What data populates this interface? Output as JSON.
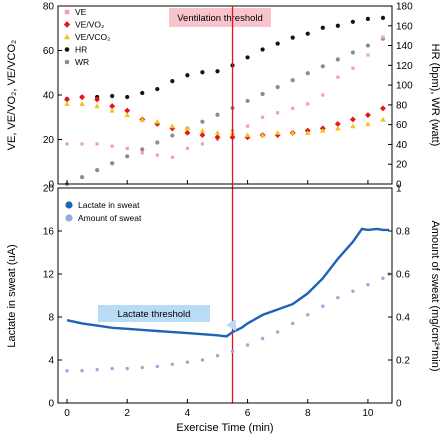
{
  "colors": {
    "ve": "#f4a0a8",
    "ve_vo2": "#e8141c",
    "ve_vco2": "#f0c419",
    "hr": "#111111",
    "wr": "#8c8c8c",
    "lactate": "#1f63b4",
    "sweat": "#8eaedb",
    "threshold_line": "#e0141c",
    "vt_box": "#f9c5cc",
    "lt_box": "#b9dcf5"
  },
  "chart_data": [
    {
      "type": "scatter",
      "panel": "top",
      "annotation": "Ventilation threshold",
      "x_range": [
        -0.3,
        10.8
      ],
      "threshold_x": 5.5,
      "left_axis": {
        "label": "VE, VE/VO₂, VE/VCO₂",
        "ylim": [
          0,
          80
        ],
        "ticks": [
          "0",
          "20",
          "40",
          "60",
          "80"
        ]
      },
      "right_axis": {
        "label": "HR (bpm), WR (watt)",
        "ylim": [
          0,
          180
        ],
        "ticks": [
          "0",
          "20",
          "40",
          "60",
          "80",
          "100",
          "120",
          "140",
          "160",
          "180"
        ]
      },
      "legend": [
        {
          "key": "ve",
          "label": "VE",
          "marker": "square"
        },
        {
          "key": "ve_vo2",
          "label": "VE/VO₂",
          "marker": "diamond"
        },
        {
          "key": "ve_vco2",
          "label": "VE/VCO₂",
          "marker": "triangle"
        },
        {
          "key": "hr",
          "label": "HR",
          "marker": "circle"
        },
        {
          "key": "wr",
          "label": "WR",
          "marker": "circle"
        }
      ],
      "series": [
        {
          "key": "hr",
          "name": "HR",
          "axis": "right",
          "points": [
            [
              0,
              86
            ],
            [
              0.5,
              88
            ],
            [
              1,
              88
            ],
            [
              1.5,
              89
            ],
            [
              2,
              88
            ],
            [
              2.5,
              92
            ],
            [
              3,
              96
            ],
            [
              3.5,
              104
            ],
            [
              4,
              110
            ],
            [
              4.5,
              113
            ],
            [
              5,
              114
            ],
            [
              5.5,
              120
            ],
            [
              6,
              128
            ],
            [
              6.5,
              136
            ],
            [
              7,
              142
            ],
            [
              7.5,
              148
            ],
            [
              8,
              152
            ],
            [
              8.5,
              158
            ],
            [
              9,
              160
            ],
            [
              9.5,
              164
            ],
            [
              10,
              167
            ],
            [
              10.5,
              168
            ]
          ]
        },
        {
          "key": "wr",
          "name": "WR",
          "axis": "right",
          "points": [
            [
              0,
              0
            ],
            [
              0.5,
              7
            ],
            [
              1,
              14
            ],
            [
              1.5,
              21
            ],
            [
              2,
              28
            ],
            [
              2.5,
              35
            ],
            [
              3,
              42
            ],
            [
              3.5,
              49
            ],
            [
              4,
              56
            ],
            [
              4.5,
              63
            ],
            [
              5,
              70
            ],
            [
              5.5,
              77
            ],
            [
              6,
              84
            ],
            [
              6.5,
              91
            ],
            [
              7,
              98
            ],
            [
              7.5,
              105
            ],
            [
              8,
              112
            ],
            [
              8.5,
              119
            ],
            [
              9,
              126
            ],
            [
              9.5,
              133
            ],
            [
              10,
              140
            ],
            [
              10.5,
              147
            ]
          ]
        },
        {
          "key": "ve",
          "name": "VE",
          "axis": "left",
          "points": [
            [
              0,
              18
            ],
            [
              0.5,
              18
            ],
            [
              1,
              18
            ],
            [
              1.5,
              17
            ],
            [
              2,
              16
            ],
            [
              2.5,
              14
            ],
            [
              3,
              13
            ],
            [
              3.5,
              12
            ],
            [
              4,
              16
            ],
            [
              4.5,
              18
            ],
            [
              5,
              20
            ],
            [
              5.5,
              24
            ],
            [
              6,
              26
            ],
            [
              6.5,
              30
            ],
            [
              7,
              32
            ],
            [
              7.5,
              34
            ],
            [
              8,
              36
            ],
            [
              8.5,
              40
            ],
            [
              9,
              48
            ],
            [
              9.5,
              52
            ],
            [
              10,
              58
            ],
            [
              10.5,
              66
            ]
          ]
        },
        {
          "key": "ve_vo2",
          "name": "VE/VO₂",
          "axis": "left",
          "points": [
            [
              0,
              38
            ],
            [
              0.5,
              39
            ],
            [
              1,
              38
            ],
            [
              1.5,
              35
            ],
            [
              2,
              33
            ],
            [
              2.5,
              29
            ],
            [
              3,
              27
            ],
            [
              3.5,
              25
            ],
            [
              4,
              23
            ],
            [
              4.5,
              22
            ],
            [
              5,
              21
            ],
            [
              5.5,
              21
            ],
            [
              6,
              21
            ],
            [
              6.5,
              22
            ],
            [
              7,
              22
            ],
            [
              7.5,
              23
            ],
            [
              8,
              24
            ],
            [
              8.5,
              25
            ],
            [
              9,
              27
            ],
            [
              9.5,
              29
            ],
            [
              10,
              31
            ],
            [
              10.5,
              34
            ]
          ]
        },
        {
          "key": "ve_vco2",
          "name": "VE/VCO₂",
          "axis": "left",
          "points": [
            [
              0,
              36
            ],
            [
              0.5,
              36
            ],
            [
              1,
              35
            ],
            [
              1.5,
              33
            ],
            [
              2,
              31
            ],
            [
              2.5,
              29
            ],
            [
              3,
              28
            ],
            [
              3.5,
              26
            ],
            [
              4,
              25
            ],
            [
              4.5,
              24
            ],
            [
              5,
              23
            ],
            [
              5.5,
              23
            ],
            [
              6,
              22
            ],
            [
              6.5,
              22
            ],
            [
              7,
              23
            ],
            [
              7.5,
              23
            ],
            [
              8,
              23
            ],
            [
              8.5,
              24
            ],
            [
              9,
              25
            ],
            [
              9.5,
              26
            ],
            [
              10,
              27
            ],
            [
              10.5,
              29
            ]
          ]
        }
      ]
    },
    {
      "type": "line",
      "panel": "bottom",
      "annotation": "Lactate threshold",
      "x_range": [
        -0.3,
        10.8
      ],
      "threshold_x": 5.5,
      "xlabel": "Exercise Time (min)",
      "x_ticks": [
        "0",
        "2",
        "4",
        "6",
        "8",
        "10"
      ],
      "left_axis": {
        "label": "Lactate in sweat  (uA)",
        "ylim": [
          0,
          20
        ],
        "ticks": [
          "0",
          "4",
          "8",
          "12",
          "16",
          "20"
        ]
      },
      "right_axis": {
        "label": "Amount of sweat  (mg/cm²*min)",
        "ylim": [
          0,
          1.0
        ],
        "ticks": [
          "0",
          "0.2",
          "0.4",
          "0.6",
          "0.8",
          "1"
        ]
      },
      "legend": [
        {
          "key": "lactate",
          "label": "Lactate in sweat"
        },
        {
          "key": "sweat",
          "label": "Amount of sweat"
        }
      ],
      "series": [
        {
          "key": "lactate",
          "name": "Lactate in sweat",
          "axis": "left",
          "x": [
            0,
            0.5,
            1,
            1.5,
            2,
            2.5,
            3,
            3.5,
            4,
            4.5,
            5,
            5.3,
            5.5,
            5.8,
            6,
            6.5,
            7,
            7.5,
            8,
            8.5,
            9,
            9.5,
            9.8,
            10,
            10.3,
            10.5,
            10.7
          ],
          "values": [
            7.7,
            7.4,
            7.2,
            7.0,
            6.9,
            6.8,
            6.7,
            6.6,
            6.5,
            6.4,
            6.3,
            6.2,
            6.6,
            7.0,
            7.4,
            8.2,
            8.7,
            9.2,
            10.2,
            11.6,
            13.4,
            15.0,
            16.2,
            16.1,
            16.2,
            16.1,
            16.1
          ]
        },
        {
          "key": "sweat",
          "name": "Amount of sweat",
          "axis": "right",
          "x": [
            0,
            0.5,
            1,
            1.5,
            2,
            2.5,
            3,
            3.5,
            4,
            4.5,
            5,
            5.5,
            6,
            6.5,
            7,
            7.5,
            8,
            8.5,
            9,
            9.5,
            10,
            10.5,
            10.7
          ],
          "values": [
            0.15,
            0.15,
            0.155,
            0.16,
            0.16,
            0.165,
            0.17,
            0.18,
            0.19,
            0.2,
            0.22,
            0.24,
            0.27,
            0.3,
            0.33,
            0.37,
            0.41,
            0.45,
            0.49,
            0.52,
            0.55,
            0.58,
            0.6
          ]
        }
      ]
    }
  ]
}
